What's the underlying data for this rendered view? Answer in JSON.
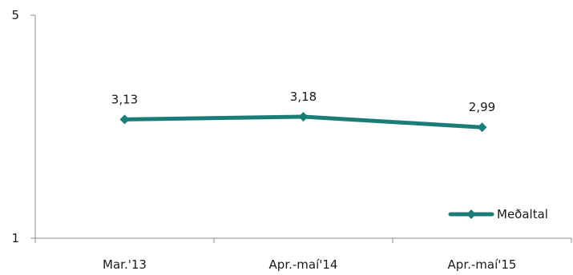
{
  "chart_data": {
    "type": "line",
    "categories": [
      "Mar.'13",
      "Apr.-maí'14",
      "Apr.-maí'15"
    ],
    "series": [
      {
        "name": "Meðaltal",
        "values": [
          3.13,
          3.18,
          2.99
        ],
        "labels": [
          "3,13",
          "3,18",
          "2,99"
        ]
      }
    ],
    "ylim": [
      1,
      5
    ],
    "yticks": [
      1,
      5
    ],
    "ytick_labels": [
      "1",
      "5"
    ],
    "grid": false,
    "legend": "bottom-right",
    "line_color": "#1b7d78",
    "axis_color": "#8c8c8c",
    "title": "",
    "xlabel": "",
    "ylabel": ""
  }
}
